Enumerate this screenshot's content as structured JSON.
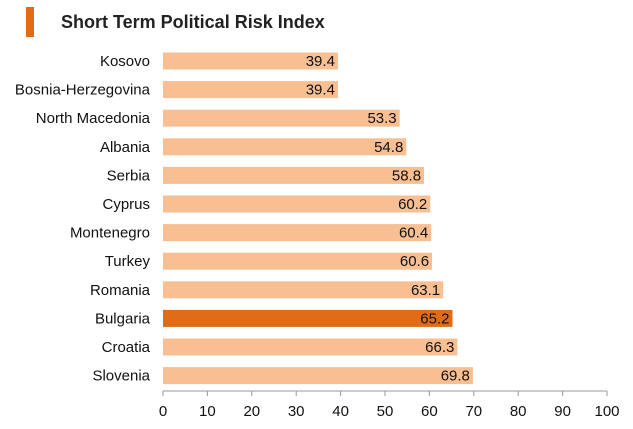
{
  "title": "Short Term Political Risk Index",
  "colors": {
    "accent": "#e06c17",
    "bar": "#f8bf93",
    "highlight": "#e06c17"
  },
  "chart_data": {
    "type": "bar",
    "orientation": "horizontal",
    "title": "Short Term Political Risk Index",
    "categories": [
      "Kosovo",
      "Bosnia-Herzegovina",
      "North Macedonia",
      "Albania",
      "Serbia",
      "Cyprus",
      "Montenegro",
      "Turkey",
      "Romania",
      "Bulgaria",
      "Croatia",
      "Slovenia"
    ],
    "values": [
      39.4,
      39.4,
      53.3,
      54.8,
      58.8,
      60.2,
      60.4,
      60.6,
      63.1,
      65.2,
      66.3,
      69.8
    ],
    "value_labels": [
      "39.4",
      "39.4",
      "53.3",
      "54.8",
      "58.8",
      "60.2",
      "60.4",
      "60.6",
      "63.1",
      "65.2",
      "66.3",
      "69.8"
    ],
    "highlight": "Bulgaria",
    "xlim": [
      0,
      100
    ],
    "xticks": [
      0,
      10,
      20,
      30,
      40,
      50,
      60,
      70,
      80,
      90,
      100
    ],
    "xlabel": "",
    "ylabel": "",
    "grid": false,
    "legend": "none"
  }
}
